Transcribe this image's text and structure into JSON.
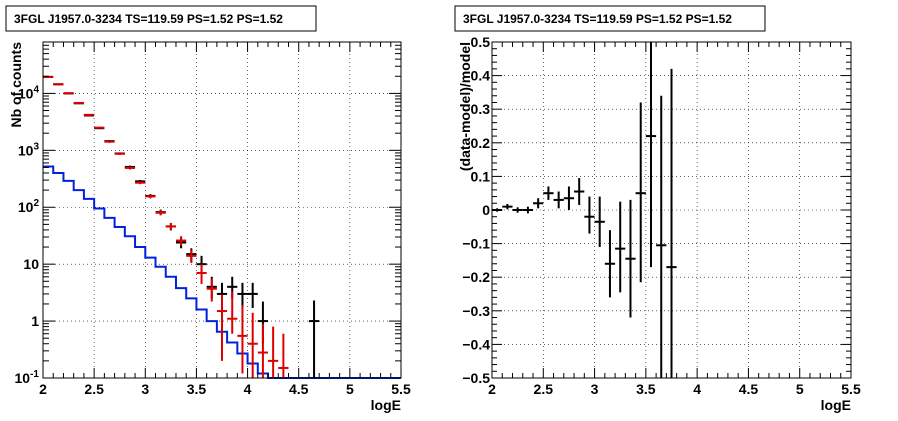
{
  "chart_data": [
    {
      "type": "line",
      "title": "3FGL J1957.0-3234 TS=119.59 PS=1.52 PS=1.52",
      "xlabel": "logE",
      "ylabel": "Nb of counts",
      "xlim": [
        2,
        5.5
      ],
      "ylim": [
        0.1,
        80000
      ],
      "yscale": "log",
      "grid": true,
      "x_ticks": [
        "2",
        "2.5",
        "3",
        "3.5",
        "4",
        "4.5",
        "5",
        "5.5"
      ],
      "y_ticks": [
        "10^-1",
        "1",
        "10",
        "10^2",
        "10^3",
        "10^4"
      ],
      "series": [
        {
          "color": "#000000",
          "style": "errorbar",
          "points": [
            {
              "x": 2.05,
              "y": 19500,
              "lo": 19000,
              "hi": 20000
            },
            {
              "x": 2.15,
              "y": 14500,
              "lo": 14100,
              "hi": 14900
            },
            {
              "x": 2.25,
              "y": 10000,
              "lo": 9700,
              "hi": 10300
            },
            {
              "x": 2.35,
              "y": 6700,
              "lo": 6500,
              "hi": 6900
            },
            {
              "x": 2.45,
              "y": 4100,
              "lo": 3950,
              "hi": 4250
            },
            {
              "x": 2.55,
              "y": 2450,
              "lo": 2350,
              "hi": 2550
            },
            {
              "x": 2.65,
              "y": 1450,
              "lo": 1380,
              "hi": 1520
            },
            {
              "x": 2.75,
              "y": 880,
              "lo": 840,
              "hi": 920
            },
            {
              "x": 2.85,
              "y": 510,
              "lo": 480,
              "hi": 540
            },
            {
              "x": 2.95,
              "y": 285,
              "lo": 268,
              "hi": 302
            },
            {
              "x": 3.05,
              "y": 158,
              "lo": 146,
              "hi": 170
            },
            {
              "x": 3.15,
              "y": 82,
              "lo": 73,
              "hi": 91
            },
            {
              "x": 3.25,
              "y": 46,
              "lo": 39,
              "hi": 53
            },
            {
              "x": 3.35,
              "y": 24,
              "lo": 19,
              "hi": 29
            },
            {
              "x": 3.45,
              "y": 15,
              "lo": 11,
              "hi": 19
            },
            {
              "x": 3.55,
              "y": 10,
              "lo": 7,
              "hi": 14
            },
            {
              "x": 3.65,
              "y": 4,
              "lo": 2.5,
              "hi": 6
            },
            {
              "x": 3.75,
              "y": 3,
              "lo": 1.7,
              "hi": 4.7
            },
            {
              "x": 3.85,
              "y": 4,
              "lo": 2.5,
              "hi": 6
            },
            {
              "x": 3.95,
              "y": 3,
              "lo": 1.7,
              "hi": 4.7
            },
            {
              "x": 4.05,
              "y": 3,
              "lo": 1.7,
              "hi": 4.7
            },
            {
              "x": 4.15,
              "y": 1,
              "lo": 0.4,
              "hi": 2.2
            },
            {
              "x": 4.65,
              "y": 1,
              "lo": 0.1,
              "hi": 2.3
            }
          ]
        },
        {
          "color": "#dd0000",
          "style": "errorbar",
          "points": [
            {
              "x": 2.05,
              "y": 19500,
              "lo": 19000,
              "hi": 20000
            },
            {
              "x": 2.15,
              "y": 14400,
              "lo": 14000,
              "hi": 14800
            },
            {
              "x": 2.25,
              "y": 10100,
              "lo": 9800,
              "hi": 10400
            },
            {
              "x": 2.35,
              "y": 6800,
              "lo": 6600,
              "hi": 7000
            },
            {
              "x": 2.45,
              "y": 4200,
              "lo": 4050,
              "hi": 4350
            },
            {
              "x": 2.55,
              "y": 2500,
              "lo": 2400,
              "hi": 2600
            },
            {
              "x": 2.65,
              "y": 1420,
              "lo": 1350,
              "hi": 1490
            },
            {
              "x": 2.75,
              "y": 870,
              "lo": 830,
              "hi": 910
            },
            {
              "x": 2.85,
              "y": 490,
              "lo": 460,
              "hi": 520
            },
            {
              "x": 2.95,
              "y": 270,
              "lo": 254,
              "hi": 286
            },
            {
              "x": 3.05,
              "y": 155,
              "lo": 143,
              "hi": 167
            },
            {
              "x": 3.15,
              "y": 80,
              "lo": 72,
              "hi": 89
            },
            {
              "x": 3.25,
              "y": 46,
              "lo": 39,
              "hi": 53
            },
            {
              "x": 3.35,
              "y": 26,
              "lo": 21,
              "hi": 31
            },
            {
              "x": 3.45,
              "y": 14,
              "lo": 10.5,
              "hi": 18
            },
            {
              "x": 3.55,
              "y": 7,
              "lo": 4.5,
              "hi": 10
            },
            {
              "x": 3.65,
              "y": 3.7,
              "lo": 2.2,
              "hi": 5.6
            },
            {
              "x": 3.75,
              "y": 1.5,
              "lo": 0.2,
              "hi": 2.9
            },
            {
              "x": 3.85,
              "y": 1.1,
              "lo": 0.6,
              "hi": 3.3
            },
            {
              "x": 3.95,
              "y": 0.55,
              "lo": 0.12,
              "hi": 1.9
            },
            {
              "x": 4.05,
              "y": 0.4,
              "lo": 0.1,
              "hi": 1.4
            },
            {
              "x": 4.15,
              "y": 0.28,
              "lo": 0.1,
              "hi": 0.9
            },
            {
              "x": 4.25,
              "y": 0.2,
              "lo": 0.1,
              "hi": 0.8
            },
            {
              "x": 4.35,
              "y": 0.15,
              "lo": 0.1,
              "hi": 0.6
            }
          ]
        },
        {
          "color": "#0022dd",
          "style": "step",
          "bin_edges": [
            2.0,
            2.1,
            2.2,
            2.3,
            2.4,
            2.5,
            2.6,
            2.7,
            2.8,
            2.9,
            3.0,
            3.1,
            3.2,
            3.3,
            3.4,
            3.5,
            3.6,
            3.7,
            3.8,
            3.9,
            4.0,
            4.1,
            4.2,
            4.3,
            4.4,
            4.5,
            4.6,
            4.7,
            5.5
          ],
          "values": [
            520,
            400,
            290,
            200,
            140,
            95,
            65,
            45,
            31,
            20,
            13,
            9,
            6,
            3.8,
            2.5,
            1.6,
            1.0,
            0.65,
            0.42,
            0.27,
            0.18,
            0.12,
            0.1,
            0.1,
            0.1,
            0.1,
            0.1,
            0.1
          ]
        }
      ]
    },
    {
      "type": "scatter",
      "title": "3FGL J1957.0-3234 TS=119.59 PS=1.52 PS=1.52",
      "xlabel": "logE",
      "ylabel": "(data-model)/model",
      "xlim": [
        2,
        5.5
      ],
      "ylim": [
        -0.5,
        0.5
      ],
      "grid": true,
      "x_ticks": [
        "2",
        "2.5",
        "3",
        "3.5",
        "4",
        "4.5",
        "5",
        "5.5"
      ],
      "y_ticks": [
        "−0.5",
        "−0.4",
        "−0.3",
        "−0.2",
        "−0.1",
        "0",
        "0.1",
        "0.2",
        "0.3",
        "0.4",
        "0.5"
      ],
      "series": [
        {
          "color": "#000000",
          "style": "errorbar",
          "points": [
            {
              "x": 2.05,
              "y": 0.0,
              "lo": -0.005,
              "hi": 0.005
            },
            {
              "x": 2.15,
              "y": 0.01,
              "lo": 0.002,
              "hi": 0.018
            },
            {
              "x": 2.25,
              "y": 0.0,
              "lo": -0.008,
              "hi": 0.008
            },
            {
              "x": 2.35,
              "y": 0.0,
              "lo": -0.01,
              "hi": 0.01
            },
            {
              "x": 2.45,
              "y": 0.02,
              "lo": 0.005,
              "hi": 0.035
            },
            {
              "x": 2.55,
              "y": 0.05,
              "lo": 0.03,
              "hi": 0.07
            },
            {
              "x": 2.65,
              "y": 0.03,
              "lo": 0.005,
              "hi": 0.055
            },
            {
              "x": 2.75,
              "y": 0.035,
              "lo": 0.0,
              "hi": 0.07
            },
            {
              "x": 2.85,
              "y": 0.055,
              "lo": 0.015,
              "hi": 0.095
            },
            {
              "x": 2.95,
              "y": -0.02,
              "lo": -0.07,
              "hi": 0.04
            },
            {
              "x": 3.05,
              "y": -0.035,
              "lo": -0.11,
              "hi": 0.04
            },
            {
              "x": 3.15,
              "y": -0.16,
              "lo": -0.26,
              "hi": -0.06
            },
            {
              "x": 3.25,
              "y": -0.115,
              "lo": -0.245,
              "hi": 0.025
            },
            {
              "x": 3.35,
              "y": -0.145,
              "lo": -0.32,
              "hi": 0.03
            },
            {
              "x": 3.45,
              "y": 0.05,
              "lo": -0.215,
              "hi": 0.32
            },
            {
              "x": 3.55,
              "y": 0.22,
              "lo": -0.17,
              "hi": 0.5
            },
            {
              "x": 3.65,
              "y": -0.105,
              "lo": -0.5,
              "hi": 0.34
            },
            {
              "x": 3.75,
              "y": -0.17,
              "lo": -0.5,
              "hi": 0.42
            }
          ]
        }
      ]
    }
  ]
}
